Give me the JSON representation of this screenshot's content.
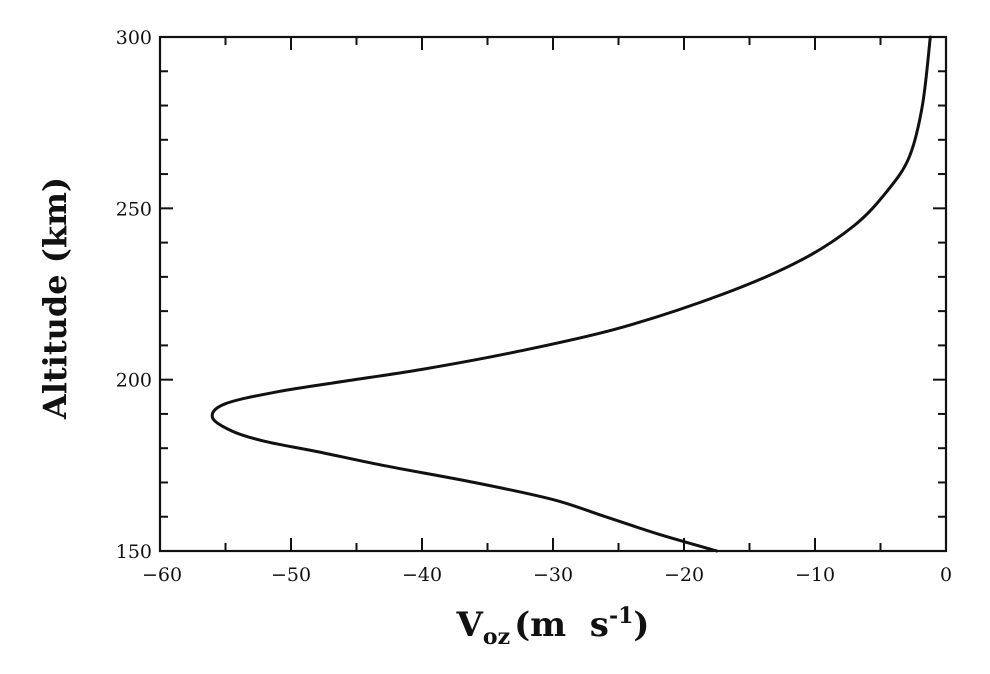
{
  "chart_data": {
    "type": "line",
    "title": "",
    "xlabel": {
      "main": "V",
      "subscript": "oz",
      "unit_prefix": "(m  s",
      "unit_superscript": "-1",
      "unit_suffix": ")"
    },
    "ylabel": "Altitude (km)",
    "xlim": [
      -60,
      0
    ],
    "ylim": [
      150,
      300
    ],
    "x_ticks": [
      -60,
      -50,
      -40,
      -30,
      -20,
      -10,
      0
    ],
    "x_tick_labels": [
      "−60",
      "−50",
      "−40",
      "−30",
      "−20",
      "−10",
      "0"
    ],
    "y_ticks": [
      150,
      200,
      250,
      300
    ],
    "y_tick_labels": [
      "150",
      "200",
      "250",
      "300"
    ],
    "x_minor_step": 5,
    "y_minor_step": 10,
    "grid": false,
    "series": [
      {
        "name": "",
        "color": "#111111",
        "x": [
          -17.5,
          -22,
          -26,
          -30,
          -36,
          -43,
          -48,
          -52,
          -54.5,
          -56,
          -55,
          -51,
          -46,
          -40,
          -33,
          -25,
          -17,
          -11,
          -7,
          -4.5,
          -2.8,
          -1.8,
          -1.2
        ],
        "y": [
          150,
          155,
          160,
          165,
          170,
          175,
          179,
          182,
          185,
          189,
          193,
          196.5,
          199.5,
          203,
          208,
          215,
          225,
          235,
          245,
          255,
          265,
          280,
          300
        ]
      }
    ]
  }
}
